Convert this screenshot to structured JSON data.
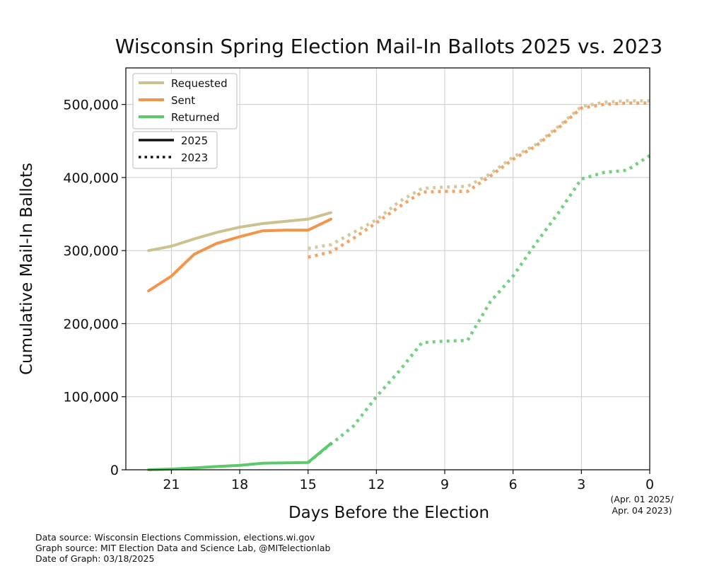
{
  "chart_data": {
    "type": "line",
    "title": "Wisconsin Spring Election Mail-In Ballots 2025 vs. 2023",
    "xlabel": "Days Before the Election",
    "ylabel": "Cumulative Mail-In Ballots",
    "x_reversed": true,
    "xlim": [
      23,
      0
    ],
    "ylim": [
      0,
      550000
    ],
    "xticks": [
      21,
      18,
      15,
      12,
      9,
      6,
      3,
      0
    ],
    "yticks": [
      0,
      100000,
      200000,
      300000,
      400000,
      500000
    ],
    "ytick_labels": [
      "0",
      "100,000",
      "200,000",
      "300,000",
      "400,000",
      "500,000"
    ],
    "x_note": [
      "(Apr. 01 2025/",
      "Apr. 04 2023)"
    ],
    "grid": true,
    "legend_placement": "top-left",
    "legend_series": [
      "Requested",
      "Sent",
      "Returned"
    ],
    "legend_years": [
      "2025",
      "2023"
    ],
    "colors": {
      "Requested": "#cbc28f",
      "Sent": "#f4934a",
      "Returned": "#5cc96b"
    },
    "series": [
      {
        "name": "Requested",
        "year": "2025",
        "style": "solid",
        "x": [
          22,
          21,
          20,
          19,
          18,
          17,
          16,
          15,
          14
        ],
        "y": [
          300000,
          306000,
          316000,
          325000,
          332000,
          337000,
          340000,
          343000,
          352000
        ]
      },
      {
        "name": "Sent",
        "year": "2025",
        "style": "solid",
        "x": [
          22,
          21,
          20,
          19,
          18,
          17,
          16,
          15,
          14
        ],
        "y": [
          245000,
          265000,
          295000,
          310000,
          319000,
          327000,
          328000,
          328000,
          343000
        ]
      },
      {
        "name": "Returned",
        "year": "2025",
        "style": "solid",
        "x": [
          22,
          21,
          20,
          19,
          18,
          17,
          16,
          15,
          14
        ],
        "y": [
          0,
          1000,
          2500,
          4500,
          6000,
          9000,
          9500,
          10000,
          36000
        ]
      },
      {
        "name": "Requested",
        "year": "2023",
        "style": "dotted",
        "x": [
          15,
          14,
          13,
          12,
          11,
          10,
          9,
          8,
          7,
          6,
          5,
          4,
          3,
          2,
          1,
          0
        ],
        "y": [
          303000,
          308000,
          325000,
          342000,
          367000,
          385000,
          387000,
          388000,
          405000,
          428000,
          445000,
          470000,
          497000,
          503000,
          505000,
          505000
        ]
      },
      {
        "name": "Sent",
        "year": "2023",
        "style": "dotted",
        "x": [
          15,
          14,
          13,
          12,
          11,
          10,
          9,
          8,
          7,
          6,
          5,
          4,
          3,
          2,
          1,
          0
        ],
        "y": [
          291000,
          298000,
          317000,
          338000,
          360000,
          380000,
          381000,
          381000,
          402000,
          425000,
          443000,
          468000,
          495000,
          500000,
          502000,
          502000
        ]
      },
      {
        "name": "Returned",
        "year": "2023",
        "style": "dotted",
        "x": [
          15,
          14,
          13,
          12,
          11,
          10,
          9,
          8,
          7,
          6,
          5,
          4,
          3,
          2,
          1,
          0
        ],
        "y": [
          10000,
          35000,
          60000,
          100000,
          135000,
          174000,
          176000,
          177000,
          230000,
          265000,
          310000,
          352000,
          398000,
          407000,
          410000,
          430000
        ]
      }
    ]
  },
  "footer": {
    "lines": [
      "Data source: Wisconsin Elections Commission, elections.wi.gov",
      "Graph source: MIT Election Data and Science Lab, @MITelectionlab",
      "Date of Graph: 03/18/2025"
    ]
  }
}
